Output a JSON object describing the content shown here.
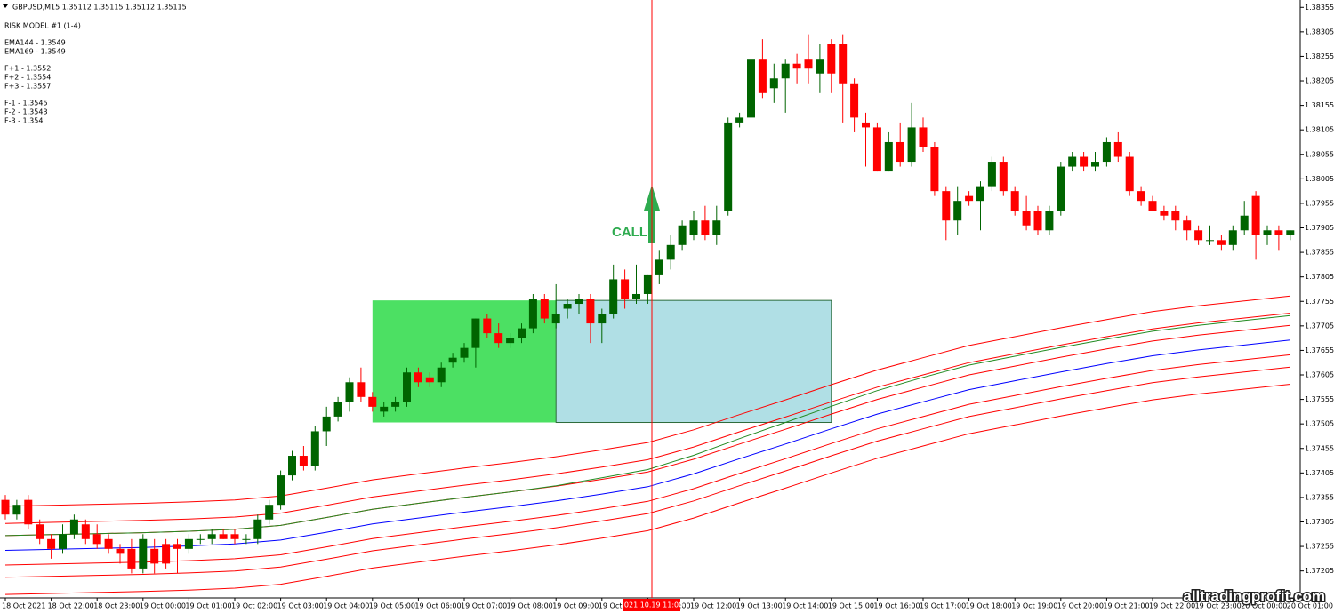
{
  "chart_data": [
    {
      "type": "candlestick",
      "title": "GBPUSD,M15  1.35112 1.35115 1.35112 1.35115",
      "info": [
        "RISK MODEL #1 (1-4)",
        "EMA144 - 1.3549",
        "EMA169 - 1.3549",
        "F+1 - 1.3552",
        "F+2 - 1.3554",
        "F+3 - 1.3557",
        "F-1 - 1.3545",
        "F-2 - 1.3543",
        "F-3 - 1.354"
      ],
      "signal": "CALL",
      "cursor_label": "2021.10.19 11:00",
      "watermark": "alltradingprofit.com",
      "up_color": "#006400",
      "down_color": "#ff0000",
      "ylim": [
        1.3715,
        1.3837
      ],
      "yticks": [
        1.38355,
        1.38305,
        1.38255,
        1.38205,
        1.38155,
        1.38105,
        1.38055,
        1.38005,
        1.37955,
        1.37905,
        1.37855,
        1.37805,
        1.37755,
        1.37705,
        1.37655,
        1.37605,
        1.37555,
        1.37505,
        1.37455,
        1.37405,
        1.37355,
        1.37305,
        1.37255,
        1.37205
      ],
      "zones": [
        {
          "color": "#4ce063",
          "ylim": [
            1.37508,
            1.37757
          ]
        },
        {
          "color": "#b0dfe5",
          "ylim": [
            1.37508,
            1.37757
          ]
        }
      ],
      "categories": [
        "18 Oct 2021",
        null,
        null,
        null,
        "18 Oct 22:00",
        null,
        null,
        null,
        "18 Oct 23:00",
        null,
        null,
        null,
        "19 Oct 00:00",
        null,
        null,
        null,
        "19 Oct 01:00",
        null,
        null,
        null,
        "19 Oct 02:00",
        null,
        null,
        null,
        "19 Oct 03:00",
        null,
        null,
        null,
        "19 Oct 04:00",
        null,
        null,
        null,
        "19 Oct 05:00",
        null,
        null,
        null,
        "19 Oct 06:00",
        null,
        null,
        null,
        "19 Oct 07:00",
        null,
        null,
        null,
        "19 Oct 08:00",
        null,
        null,
        null,
        "19 Oct 09:00",
        null,
        null,
        null,
        "19 Oct 10:00",
        null,
        null,
        null,
        "19 Oct 11:00",
        null,
        null,
        null,
        "19 Oct 12:00",
        null,
        null,
        null,
        "19 Oct 13:00",
        null,
        null,
        null,
        "19 Oct 14:00",
        null,
        null,
        null,
        "19 Oct 15:00",
        null,
        null,
        null,
        "19 Oct 16:00",
        null,
        null,
        null,
        "19 Oct 17:00",
        null,
        null,
        null,
        "19 Oct 18:00",
        null,
        null,
        null,
        "19 Oct 19:00",
        null,
        null,
        null,
        "19 Oct 20:00",
        null,
        null,
        null,
        "19 Oct 21:00",
        null,
        null,
        null,
        "19 Oct 22:00",
        null,
        null,
        null,
        "19 Oct 23:00",
        null,
        null,
        null,
        "20 Oct 00:00",
        null,
        null,
        null,
        "20 Oct 01:00"
      ],
      "values": [
        [
          1.3735,
          1.3736,
          1.3731,
          1.3732
        ],
        [
          1.3732,
          1.3735,
          1.3731,
          1.3734
        ],
        [
          1.3735,
          1.3736,
          1.3729,
          1.373
        ],
        [
          1.373,
          1.3731,
          1.3726,
          1.3727
        ],
        [
          1.3727,
          1.3728,
          1.3723,
          1.3725
        ],
        [
          1.3725,
          1.373,
          1.3724,
          1.3728
        ],
        [
          1.3728,
          1.3732,
          1.3727,
          1.3731
        ],
        [
          1.373,
          1.3731,
          1.3726,
          1.3727
        ],
        [
          1.3728,
          1.373,
          1.3725,
          1.3726
        ],
        [
          1.3727,
          1.3728,
          1.3724,
          1.3725
        ],
        [
          1.3725,
          1.3726,
          1.3722,
          1.3724
        ],
        [
          1.3725,
          1.3727,
          1.372,
          1.3721
        ],
        [
          1.3721,
          1.3728,
          1.372,
          1.3727
        ],
        [
          1.3725,
          1.3727,
          1.372,
          1.3722
        ],
        [
          1.3726,
          1.3727,
          1.3721,
          1.3722
        ],
        [
          1.3726,
          1.3727,
          1.372,
          1.3725
        ],
        [
          1.3725,
          1.3728,
          1.3724,
          1.3727
        ],
        [
          1.3727,
          1.3728,
          1.3726,
          1.3727
        ],
        [
          1.3727,
          1.3729,
          1.3726,
          1.3728
        ],
        [
          1.3728,
          1.3729,
          1.3727,
          1.3727
        ],
        [
          1.3728,
          1.3729,
          1.3726,
          1.3727
        ],
        [
          1.3727,
          1.3728,
          1.3726,
          1.3727
        ],
        [
          1.3727,
          1.3732,
          1.3726,
          1.3731
        ],
        [
          1.3731,
          1.3735,
          1.373,
          1.3734
        ],
        [
          1.3734,
          1.3741,
          1.3733,
          1.374
        ],
        [
          1.374,
          1.3745,
          1.3739,
          1.3744
        ],
        [
          1.3744,
          1.3746,
          1.3741,
          1.3742
        ],
        [
          1.3742,
          1.375,
          1.3741,
          1.3749
        ],
        [
          1.3749,
          1.3754,
          1.3746,
          1.3752
        ],
        [
          1.3752,
          1.3756,
          1.3751,
          1.3755
        ],
        [
          1.3755,
          1.376,
          1.3753,
          1.3759
        ],
        [
          1.3759,
          1.3762,
          1.3755,
          1.3756
        ],
        [
          1.3756,
          1.3757,
          1.3753,
          1.3754
        ],
        [
          1.3753,
          1.3755,
          1.3752,
          1.3754
        ],
        [
          1.3754,
          1.3756,
          1.3753,
          1.3755
        ],
        [
          1.3755,
          1.3762,
          1.3754,
          1.3761
        ],
        [
          1.3761,
          1.3762,
          1.3758,
          1.3759
        ],
        [
          1.376,
          1.3761,
          1.3758,
          1.3759
        ],
        [
          1.3759,
          1.3763,
          1.3758,
          1.3762
        ],
        [
          1.3763,
          1.3765,
          1.3762,
          1.3764
        ],
        [
          1.3764,
          1.3767,
          1.3763,
          1.3766
        ],
        [
          1.3766,
          1.3772,
          1.3762,
          1.3772
        ],
        [
          1.3772,
          1.3773,
          1.3768,
          1.3769
        ],
        [
          1.3769,
          1.3771,
          1.3766,
          1.3767
        ],
        [
          1.3767,
          1.3769,
          1.3766,
          1.3768
        ],
        [
          1.3768,
          1.3771,
          1.3767,
          1.377
        ],
        [
          1.377,
          1.3777,
          1.3769,
          1.3776
        ],
        [
          1.3776,
          1.3777,
          1.3771,
          1.3772
        ],
        [
          1.3771,
          1.3779,
          1.377,
          1.3773
        ],
        [
          1.3774,
          1.3776,
          1.3772,
          1.3775
        ],
        [
          1.3775,
          1.3777,
          1.3773,
          1.3776
        ],
        [
          1.3776,
          1.3777,
          1.3767,
          1.3771
        ],
        [
          1.3771,
          1.3774,
          1.3767,
          1.3773
        ],
        [
          1.3773,
          1.3783,
          1.3772,
          1.378
        ],
        [
          1.378,
          1.3782,
          1.3774,
          1.3776
        ],
        [
          1.3776,
          1.3783,
          1.3775,
          1.3777
        ],
        [
          1.3777,
          1.3781,
          1.3775,
          1.3781
        ],
        [
          1.3781,
          1.3786,
          1.3779,
          1.3784
        ],
        [
          1.3784,
          1.3789,
          1.3782,
          1.3787
        ],
        [
          1.3787,
          1.3792,
          1.3786,
          1.3791
        ],
        [
          1.3789,
          1.3794,
          1.3788,
          1.3792
        ],
        [
          1.3792,
          1.3795,
          1.3788,
          1.3789
        ],
        [
          1.3789,
          1.3795,
          1.3787,
          1.3792
        ],
        [
          1.3794,
          1.3813,
          1.3793,
          1.3812
        ],
        [
          1.3812,
          1.3814,
          1.3811,
          1.3813
        ],
        [
          1.3813,
          1.3827,
          1.3812,
          1.3825
        ],
        [
          1.3825,
          1.3829,
          1.3817,
          1.3818
        ],
        [
          1.3819,
          1.3824,
          1.3816,
          1.3821
        ],
        [
          1.3821,
          1.3825,
          1.3814,
          1.3824
        ],
        [
          1.3824,
          1.3826,
          1.382,
          1.3823
        ],
        [
          1.3825,
          1.383,
          1.382,
          1.3823
        ],
        [
          1.3822,
          1.3828,
          1.3818,
          1.3825
        ],
        [
          1.3828,
          1.3829,
          1.3818,
          1.3822
        ],
        [
          1.3828,
          1.383,
          1.3812,
          1.382
        ],
        [
          1.382,
          1.3821,
          1.381,
          1.3813
        ],
        [
          1.3812,
          1.3814,
          1.3803,
          1.3811
        ],
        [
          1.3811,
          1.3812,
          1.3802,
          1.3802
        ],
        [
          1.3802,
          1.381,
          1.3802,
          1.3808
        ],
        [
          1.3808,
          1.3812,
          1.3803,
          1.3804
        ],
        [
          1.3804,
          1.3816,
          1.3803,
          1.3811
        ],
        [
          1.3811,
          1.3813,
          1.3806,
          1.3807
        ],
        [
          1.3807,
          1.3808,
          1.3797,
          1.3798
        ],
        [
          1.3798,
          1.3799,
          1.3788,
          1.3792
        ],
        [
          1.3792,
          1.3799,
          1.3789,
          1.3796
        ],
        [
          1.3797,
          1.3798,
          1.3795,
          1.3796
        ],
        [
          1.3796,
          1.38,
          1.379,
          1.3799
        ],
        [
          1.3799,
          1.3805,
          1.3798,
          1.3804
        ],
        [
          1.3804,
          1.3805,
          1.3797,
          1.3798
        ],
        [
          1.3798,
          1.3799,
          1.3793,
          1.3794
        ],
        [
          1.3794,
          1.3797,
          1.379,
          1.3791
        ],
        [
          1.3794,
          1.3795,
          1.3789,
          1.379
        ],
        [
          1.379,
          1.3795,
          1.3789,
          1.3794
        ],
        [
          1.3794,
          1.3804,
          1.3793,
          1.3803
        ],
        [
          1.3803,
          1.3806,
          1.3802,
          1.3805
        ],
        [
          1.3805,
          1.3806,
          1.3802,
          1.3803
        ],
        [
          1.3803,
          1.3806,
          1.3802,
          1.3804
        ],
        [
          1.3804,
          1.3809,
          1.3803,
          1.3808
        ],
        [
          1.3808,
          1.381,
          1.3804,
          1.3805
        ],
        [
          1.3805,
          1.3806,
          1.3797,
          1.3798
        ],
        [
          1.3798,
          1.3799,
          1.3795,
          1.3796
        ],
        [
          1.3796,
          1.3797,
          1.3794,
          1.3794
        ],
        [
          1.3794,
          1.3795,
          1.3792,
          1.3793
        ],
        [
          1.3794,
          1.3795,
          1.379,
          1.3792
        ],
        [
          1.3792,
          1.3793,
          1.3788,
          1.379
        ],
        [
          1.379,
          1.3791,
          1.3787,
          1.3788
        ],
        [
          1.3788,
          1.3791,
          1.3787,
          1.3788
        ],
        [
          1.3788,
          1.3789,
          1.3786,
          1.3787
        ],
        [
          1.3787,
          1.3791,
          1.3786,
          1.379
        ],
        [
          1.379,
          1.3796,
          1.3789,
          1.3793
        ],
        [
          1.3797,
          1.3798,
          1.3784,
          1.3789
        ],
        [
          1.3789,
          1.3791,
          1.3787,
          1.379
        ],
        [
          1.379,
          1.3791,
          1.3786,
          1.3789
        ],
        [
          1.3789,
          1.379,
          1.3788,
          1.379
        ]
      ]
    },
    {
      "type": "line",
      "ylim": [
        1.3715,
        1.3837
      ],
      "series": [
        {
          "color": "#ff0000",
          "values": [
            1.37337,
            1.37339,
            1.37341,
            1.37343,
            1.37346,
            1.3735,
            1.37358,
            1.37374,
            1.37391,
            1.37403,
            1.37415,
            1.37426,
            1.37438,
            1.37452,
            1.37467,
            1.37493,
            1.37524,
            1.37554,
            1.37585,
            1.37615,
            1.3764,
            1.37665,
            1.37683,
            1.37701,
            1.37718,
            1.37734,
            1.37746,
            1.37756,
            1.37766
          ]
        },
        {
          "color": "#ff0000",
          "values": [
            1.37302,
            1.37304,
            1.37306,
            1.37308,
            1.37311,
            1.37315,
            1.37323,
            1.37339,
            1.37356,
            1.37368,
            1.3738,
            1.37391,
            1.37403,
            1.37417,
            1.37432,
            1.37458,
            1.37489,
            1.37519,
            1.3755,
            1.3758,
            1.37605,
            1.3763,
            1.37648,
            1.37666,
            1.37683,
            1.37699,
            1.37711,
            1.37721,
            1.37731
          ]
        },
        {
          "color": "#ff0000",
          "values": [
            1.37277,
            1.37279,
            1.37281,
            1.37283,
            1.37286,
            1.3729,
            1.37298,
            1.37314,
            1.37331,
            1.37343,
            1.37355,
            1.37366,
            1.37378,
            1.37392,
            1.37407,
            1.37433,
            1.37464,
            1.37494,
            1.37525,
            1.37555,
            1.3758,
            1.37605,
            1.37623,
            1.37641,
            1.37658,
            1.37674,
            1.37686,
            1.37696,
            1.37706
          ]
        },
        {
          "color": "#228b22",
          "values": [
            1.37277,
            1.37279,
            1.37281,
            1.37283,
            1.37286,
            1.3729,
            1.37298,
            1.37314,
            1.37331,
            1.37343,
            1.37355,
            1.37366,
            1.37379,
            1.37395,
            1.37412,
            1.37441,
            1.37475,
            1.37508,
            1.37541,
            1.37573,
            1.376,
            1.37625,
            1.37643,
            1.37661,
            1.37678,
            1.37694,
            1.37706,
            1.37716,
            1.37726
          ]
        },
        {
          "color": "#0000ff",
          "values": [
            1.37247,
            1.37249,
            1.37251,
            1.37253,
            1.37256,
            1.3726,
            1.37268,
            1.37284,
            1.37301,
            1.37313,
            1.37325,
            1.37336,
            1.37348,
            1.37362,
            1.37377,
            1.37403,
            1.37434,
            1.37464,
            1.37495,
            1.37525,
            1.3755,
            1.37575,
            1.37593,
            1.37611,
            1.37628,
            1.37644,
            1.37656,
            1.37666,
            1.37676
          ]
        },
        {
          "color": "#ff0000",
          "values": [
            1.37217,
            1.37219,
            1.37221,
            1.37223,
            1.37226,
            1.3723,
            1.37238,
            1.37254,
            1.37271,
            1.37283,
            1.37295,
            1.37306,
            1.37318,
            1.37332,
            1.37347,
            1.37373,
            1.37404,
            1.37434,
            1.37465,
            1.37495,
            1.3752,
            1.37545,
            1.37563,
            1.37581,
            1.37598,
            1.37614,
            1.37626,
            1.37636,
            1.37646
          ]
        },
        {
          "color": "#ff0000",
          "values": [
            1.37192,
            1.37194,
            1.37196,
            1.37198,
            1.37201,
            1.37205,
            1.37213,
            1.37229,
            1.37246,
            1.37258,
            1.3727,
            1.37281,
            1.37293,
            1.37307,
            1.37322,
            1.37348,
            1.37379,
            1.37409,
            1.3744,
            1.3747,
            1.37495,
            1.3752,
            1.37538,
            1.37556,
            1.37573,
            1.37589,
            1.37601,
            1.37611,
            1.37621
          ]
        },
        {
          "color": "#ff0000",
          "values": [
            1.37157,
            1.37159,
            1.37161,
            1.37163,
            1.37166,
            1.3717,
            1.37178,
            1.37194,
            1.37211,
            1.37223,
            1.37235,
            1.37246,
            1.37258,
            1.37272,
            1.37287,
            1.37313,
            1.37344,
            1.37374,
            1.37405,
            1.37435,
            1.3746,
            1.37485,
            1.37503,
            1.37521,
            1.37538,
            1.37554,
            1.37566,
            1.37576,
            1.37586
          ]
        }
      ]
    }
  ]
}
